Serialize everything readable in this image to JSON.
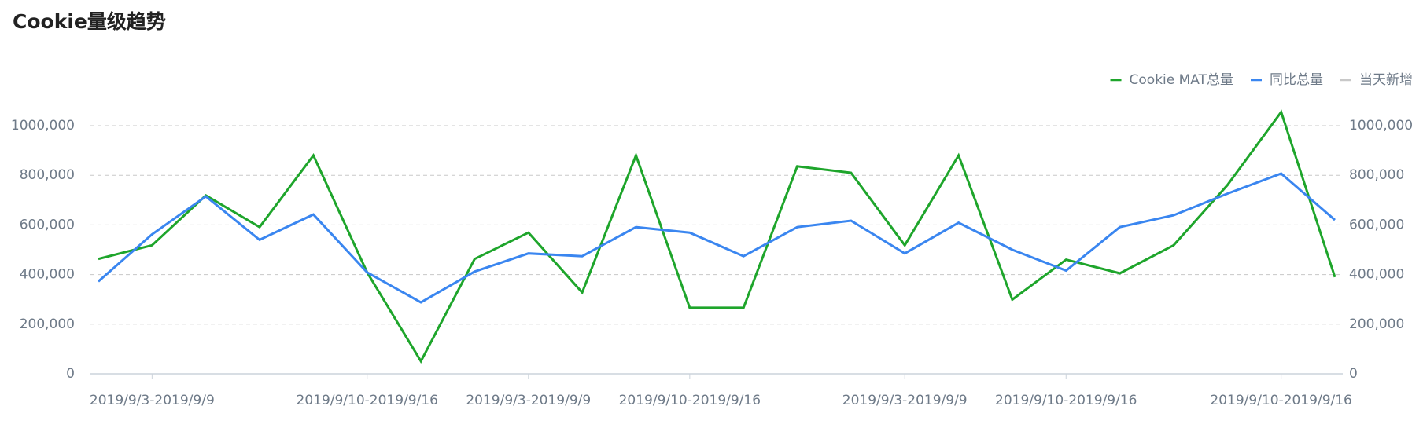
{
  "chart_data": {
    "type": "line",
    "title": "Cookie量级趋势",
    "categories": [
      null,
      "2019/9/3-2019/9/9",
      null,
      null,
      null,
      "2019/9/10-2019/9/16",
      null,
      null,
      "2019/9/3-2019/9/9",
      null,
      null,
      "2019/9/10-2019/9/16",
      null,
      null,
      null,
      "2019/9/3-2019/9/9",
      null,
      null,
      "2019/9/10-2019/9/16",
      null,
      null,
      null,
      "2019/9/10-2019/9/16",
      null
    ],
    "series": [
      {
        "name": "Cookie MAT总量",
        "color": "#1ea52b",
        "values": [
          463000,
          518000,
          719000,
          591000,
          880000,
          409000,
          51000,
          463000,
          569000,
          328000,
          880000,
          266000,
          266000,
          836000,
          810000,
          518000,
          880000,
          299000,
          460000,
          405000,
          518000,
          760000,
          1055000,
          390000
        ]
      },
      {
        "name": "同比总量",
        "color": "#3a86f0",
        "values": [
          372000,
          562000,
          715000,
          540000,
          642000,
          409000,
          288000,
          412000,
          485000,
          474000,
          591000,
          569000,
          474000,
          591000,
          617000,
          485000,
          609000,
          500000,
          416000,
          591000,
          639000,
          726000,
          807000,
          620000
        ]
      },
      {
        "name": "当天新增",
        "color": "#c8c8c8",
        "values": [
          null,
          null,
          null,
          null,
          null,
          null,
          null,
          null,
          null,
          null,
          null,
          null,
          null,
          null,
          null,
          null,
          null,
          null,
          null,
          null,
          null,
          null,
          null,
          null
        ],
        "axis": "y2"
      }
    ],
    "ylim": [
      0,
      1000000
    ],
    "yticks": [
      0,
      {
        "value": 200000,
        "label": "200,000"
      },
      {
        "value": 400000,
        "label": "400,000"
      },
      {
        "value": 600000,
        "label": "600,000"
      },
      {
        "value": 800000,
        "label": "800,000"
      },
      {
        "value": 1000000,
        "label": "1000,000"
      }
    ],
    "y2lim": [
      0,
      1000000
    ],
    "y2ticks": [
      0,
      {
        "value": 200000,
        "label": "200,000"
      },
      {
        "value": 400000,
        "label": "400,000"
      },
      {
        "value": 600000,
        "label": "600,000"
      },
      {
        "value": 800000,
        "label": "800,000"
      },
      {
        "value": 1000000,
        "label": "1000,000"
      }
    ],
    "grid": true,
    "legend": "top-right"
  }
}
